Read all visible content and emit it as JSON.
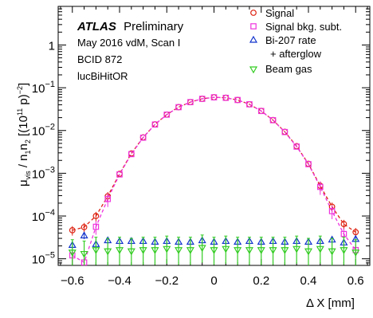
{
  "chart_data": {
    "type": "scatter",
    "xlabel": "Δ X [mm]",
    "ylabel": "μ_vis / n1n2 [(10^11 p)^-2]",
    "yscale": "log",
    "xlim": [
      -0.66,
      0.66
    ],
    "ylim": [
      7e-06,
      8
    ],
    "x_ticks": [
      -0.6,
      -0.4,
      -0.2,
      0,
      0.2,
      0.4,
      0.6
    ],
    "x_tick_labels": [
      "−0.6",
      "−0.4",
      "−0.2",
      "0",
      "0.2",
      "0.4",
      "0.6"
    ],
    "y_ticks": [
      1e-05,
      0.0001,
      0.001,
      0.01,
      0.1,
      1
    ],
    "y_tick_labels": [
      {
        "base": "10",
        "exp": "−5"
      },
      {
        "base": "10",
        "exp": "−4"
      },
      {
        "base": "10",
        "exp": "−3"
      },
      {
        "base": "10",
        "exp": "−2"
      },
      {
        "base": "10",
        "exp": "−1"
      },
      {
        "base": "1",
        "exp": ""
      }
    ],
    "grid": false,
    "legend_position": "top-right",
    "annotations": {
      "atlas": "ATLAS",
      "preliminary": "Preliminary",
      "lines": [
        "May 2016 vdM, Scan I",
        "BCID 872",
        "lucBiHitOR"
      ]
    },
    "x": [
      -0.6,
      -0.55,
      -0.5,
      -0.45,
      -0.4,
      -0.35,
      -0.3,
      -0.25,
      -0.2,
      -0.15,
      -0.1,
      -0.05,
      0,
      0.05,
      0.1,
      0.15,
      0.2,
      0.25,
      0.3,
      0.35,
      0.4,
      0.45,
      0.5,
      0.55,
      0.6
    ],
    "series": [
      {
        "name": "Signal",
        "marker": "circle",
        "color": "#dd2211",
        "values": [
          4.65e-05,
          5.5e-05,
          0.0001,
          0.00029,
          0.00097,
          0.0029,
          0.0069,
          0.0139,
          0.0236,
          0.0352,
          0.0462,
          0.0552,
          0.0598,
          0.0582,
          0.0518,
          0.0411,
          0.0287,
          0.0175,
          0.0093,
          0.0043,
          0.00166,
          0.00051,
          0.000165,
          6.5e-05,
          4.2e-05
        ]
      },
      {
        "name": "Signal bkg. subt.",
        "marker": "square",
        "color": "#ee33dd",
        "values": [
          1.2e-05,
          8.2e-06,
          5.6e-05,
          0.00025,
          0.00094,
          0.0028,
          0.0068,
          0.0138,
          0.0235,
          0.0351,
          0.0461,
          0.0551,
          0.0597,
          0.0581,
          0.0517,
          0.041,
          0.0286,
          0.0174,
          0.0092,
          0.0042,
          0.00163,
          0.00048,
          0.00013,
          3.8e-05,
          1.6e-05
        ]
      },
      {
        "name": "Bi-207 rate",
        "name_line2": "+ afterglow",
        "marker": "triangle-up",
        "color": "#1133cc",
        "values": [
          2.1e-05,
          3.5e-05,
          2.2e-05,
          2.7e-05,
          2.6e-05,
          2.6e-05,
          2.6e-05,
          2.5e-05,
          2.6e-05,
          2.5e-05,
          2.5e-05,
          2.7e-05,
          2.5e-05,
          2.6e-05,
          2.5e-05,
          2.6e-05,
          2.5e-05,
          2.6e-05,
          2.5e-05,
          2.6e-05,
          2.5e-05,
          2.6e-05,
          2.8e-05,
          2.4e-05,
          2.9e-05
        ]
      },
      {
        "name": "Beam gas",
        "marker": "triangle-down",
        "color": "#33cc22",
        "values": [
          1.4e-05,
          1.3e-05,
          1.6e-05,
          1.5e-05,
          1.6e-05,
          1.5e-05,
          1.6e-05,
          1.6e-05,
          1.7e-05,
          1.6e-05,
          1.6e-05,
          1.8e-05,
          1.6e-05,
          1.7e-05,
          1.6e-05,
          1.6e-05,
          1.6e-05,
          1.6e-05,
          1.6e-05,
          1.7e-05,
          1.5e-05,
          1.7e-05,
          1.5e-05,
          1.6e-05,
          1.4e-05
        ]
      }
    ],
    "fit_lines": [
      {
        "style": "dashed",
        "color": "#dd2211"
      },
      {
        "style": "dashed",
        "color": "#ee33dd"
      }
    ]
  }
}
